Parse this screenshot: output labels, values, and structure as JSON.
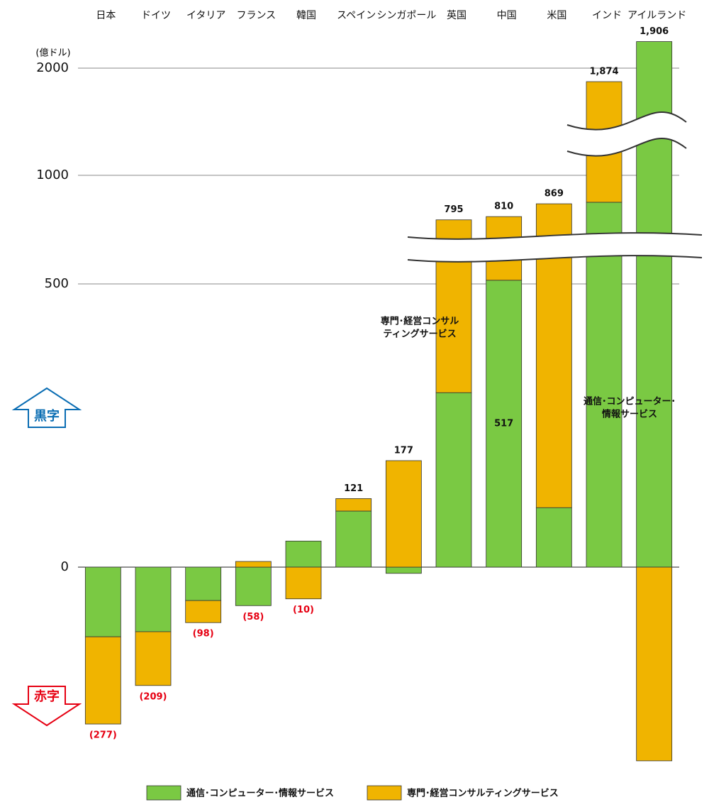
{
  "chart_data": {
    "type": "bar",
    "unit_label": "(億ドル)",
    "categories": [
      "日本",
      "ドイツ",
      "イタリア",
      "フランス",
      "韓国",
      "スペイン",
      "シンガポール",
      "英国",
      "中国",
      "米国",
      "インド",
      "アイルランド"
    ],
    "series": [
      {
        "name": "通信･コンピューター･情報サービス",
        "color": "#7ac943",
        "values": [
          -123,
          -114,
          -59,
          -68,
          46,
          99,
          -11,
          308,
          517,
          105,
          876,
          2248
        ],
        "value_labels": [
          null,
          null,
          null,
          null,
          null,
          null,
          null,
          null,
          "517",
          null,
          null,
          null
        ]
      },
      {
        "name": "専門･経営コンサルティングサービス",
        "color": "#f0b400",
        "values": [
          -154,
          -95,
          -39,
          10,
          -56,
          22,
          188,
          487,
          293,
          764,
          998,
          -342
        ]
      }
    ],
    "totals": [
      -277,
      -209,
      -98,
      -58,
      -10,
      121,
      177,
      795,
      810,
      869,
      1874,
      1906
    ],
    "total_labels": [
      "(277)",
      "(209)",
      "(98)",
      "(58)",
      "(10)",
      "121",
      "177",
      "795",
      "810",
      "869",
      "1,874",
      "1,906"
    ],
    "positive_label_color": "#111111",
    "negative_label_color": "#e60012",
    "ylim": [
      -342,
      2248
    ],
    "yticks": [
      0,
      500,
      1000,
      2000
    ],
    "grid": true,
    "annotations": [
      {
        "lines": [
          "専門･経営コンサル",
          "ティングサービス"
        ]
      },
      {
        "lines": [
          "通信･コンピューター･",
          "情報サービス"
        ]
      }
    ],
    "surplus_label": "黒字",
    "deficit_label": "赤字"
  }
}
